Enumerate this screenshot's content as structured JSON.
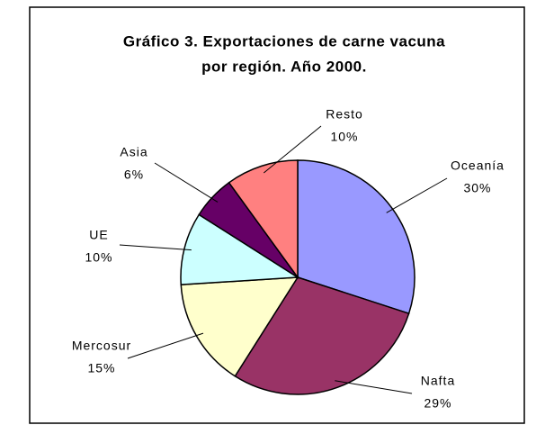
{
  "chart_data": {
    "type": "pie",
    "title": [
      "Gráfico 3. Exportaciones de carne vacuna",
      "por región. Año 2000."
    ],
    "categories": [
      "Oceanía",
      "Nafta",
      "Mercosur",
      "UE",
      "Asia",
      "Resto"
    ],
    "values": [
      30,
      29,
      15,
      10,
      6,
      10
    ],
    "value_labels": [
      "30%",
      "29%",
      "15%",
      "10%",
      "6%",
      "10%"
    ],
    "colors": [
      "#9999ff",
      "#993366",
      "#ffffcc",
      "#ccffff",
      "#660066",
      "#ff8080"
    ]
  }
}
